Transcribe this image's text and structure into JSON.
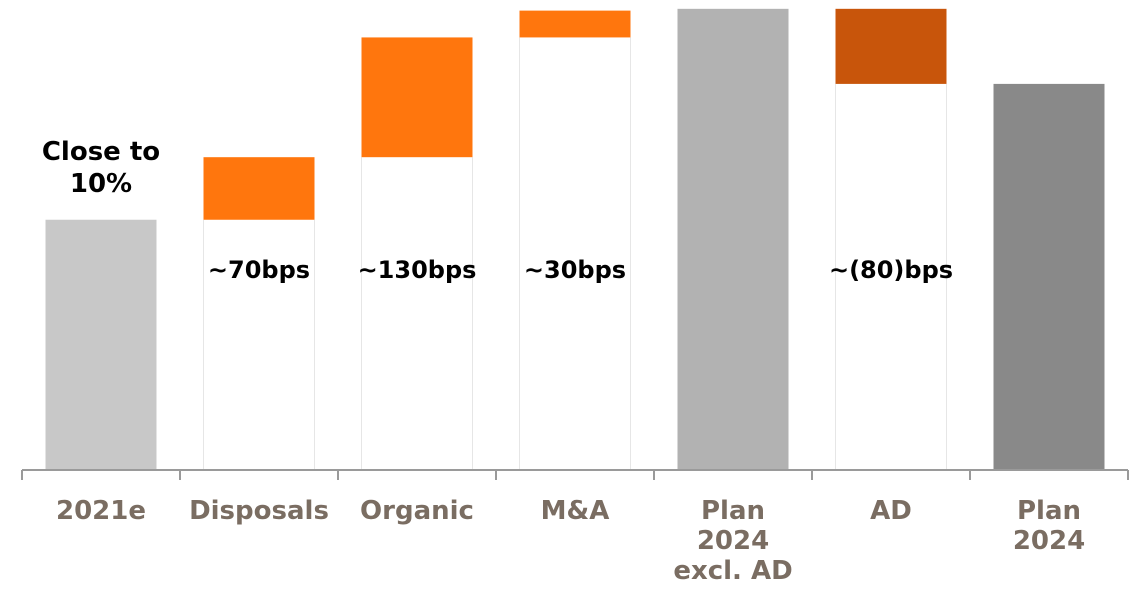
{
  "chart_data": {
    "type": "bar",
    "subtype": "waterfall",
    "title": "",
    "xlabel": "",
    "ylabel": "",
    "ylim": [
      0,
      13.09
    ],
    "grid": false,
    "legend": "none",
    "categories": [
      {
        "lines": [
          "2021e"
        ]
      },
      {
        "lines": [
          "Disposals"
        ]
      },
      {
        "lines": [
          "Organic"
        ]
      },
      {
        "lines": [
          "M&A"
        ]
      },
      {
        "lines": [
          "Plan",
          "2024",
          "excl. AD"
        ]
      },
      {
        "lines": [
          "AD"
        ]
      },
      {
        "lines": [
          "Plan",
          "2024"
        ]
      }
    ],
    "bars": [
      {
        "kind": "total",
        "start": 0,
        "end": 7.0,
        "color": "#c8c8c8",
        "label_lines": [
          "Close to",
          "10%"
        ]
      },
      {
        "kind": "delta",
        "start": 7.0,
        "end": 8.75,
        "color": "#ff760d",
        "label_lines": [
          "~70bps"
        ]
      },
      {
        "kind": "delta",
        "start": 8.75,
        "end": 12.1,
        "color": "#ff760d",
        "label_lines": [
          "~130bps"
        ]
      },
      {
        "kind": "delta",
        "start": 12.1,
        "end": 12.85,
        "color": "#ff760d",
        "label_lines": [
          "~30bps"
        ]
      },
      {
        "kind": "total",
        "start": 0,
        "end": 12.9,
        "color": "#b2b2b2",
        "label_lines": []
      },
      {
        "kind": "delta",
        "start": 12.9,
        "end": 10.8,
        "color": "#c8550b",
        "label_lines": [
          "~(80)bps"
        ]
      },
      {
        "kind": "total",
        "start": 0,
        "end": 10.8,
        "color": "#898989",
        "label_lines": []
      }
    ]
  }
}
